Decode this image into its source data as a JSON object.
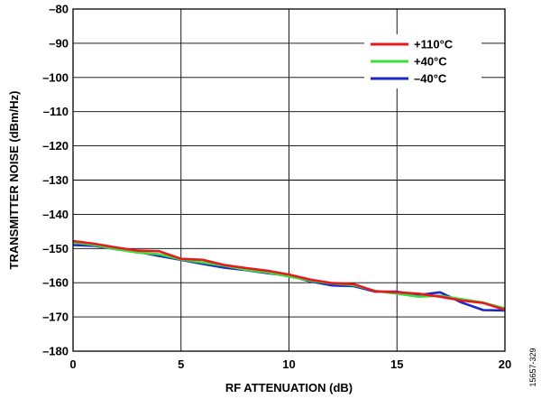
{
  "chart_data": {
    "type": "line",
    "xlabel": "RF ATTENUATION (dB)",
    "ylabel": "TRANSMITTER NOISE (dBm/Hz)",
    "xlim": [
      0,
      20
    ],
    "ylim": [
      -180,
      -80
    ],
    "xticks": [
      0,
      5,
      10,
      15,
      20
    ],
    "yticks": [
      -80,
      -90,
      -100,
      -110,
      -120,
      -130,
      -140,
      -150,
      -160,
      -170,
      -180
    ],
    "grid": true,
    "legend_position": "top-right",
    "x": [
      0,
      1,
      2,
      3,
      4,
      5,
      6,
      7,
      8,
      9,
      10,
      11,
      12,
      13,
      14,
      15,
      16,
      17,
      18,
      19,
      20
    ],
    "series": [
      {
        "name": "+110°C",
        "color": "#e8191d",
        "values": [
          -147.8,
          -148.6,
          -149.7,
          -150.6,
          -150.8,
          -153.0,
          -153.3,
          -154.8,
          -155.7,
          -156.5,
          -157.6,
          -159.1,
          -160.1,
          -160.4,
          -162.5,
          -162.8,
          -163.2,
          -164.1,
          -165.2,
          -165.9,
          -167.9
        ]
      },
      {
        "name": "+40°C",
        "color": "#3ddc3d",
        "values": [
          -148.2,
          -149.0,
          -150.2,
          -151.2,
          -151.7,
          -153.2,
          -154.1,
          -155.0,
          -156.2,
          -157.0,
          -158.2,
          -159.4,
          -160.2,
          -160.7,
          -162.4,
          -163.2,
          -164.1,
          -163.8,
          -164.8,
          -165.8,
          -167.5
        ]
      },
      {
        "name": "–40°C",
        "color": "#1b27c9",
        "values": [
          -149.0,
          -149.2,
          -150.2,
          -151.0,
          -152.2,
          -153.3,
          -154.5,
          -155.6,
          -156.3,
          -157.2,
          -158.0,
          -159.6,
          -160.8,
          -161.0,
          -162.6,
          -162.6,
          -163.6,
          -162.8,
          -165.8,
          -168.0,
          -168.1
        ]
      }
    ]
  },
  "figure_id": "15657-329"
}
